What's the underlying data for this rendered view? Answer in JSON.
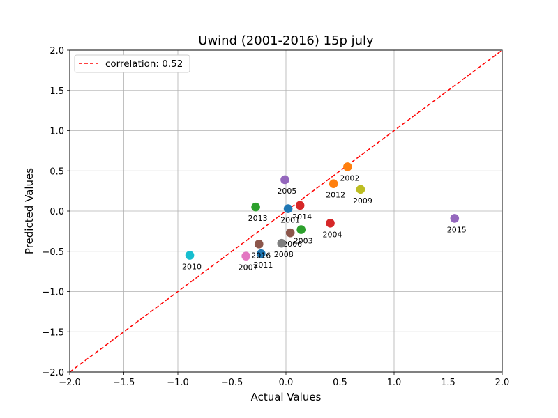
{
  "chart_data": {
    "type": "scatter",
    "title": "Uwind (2001-2016) 15p july",
    "xlabel": "Actual Values",
    "ylabel": "Predicted Values",
    "xlim": [
      -2.0,
      2.0
    ],
    "ylim": [
      -2.0,
      2.0
    ],
    "xticks": [
      "−2.0",
      "−1.5",
      "−1.0",
      "−0.5",
      "0.0",
      "0.5",
      "1.0",
      "1.5",
      "2.0"
    ],
    "yticks": [
      "−2.0",
      "−1.5",
      "−1.0",
      "−0.5",
      "0.0",
      "0.5",
      "1.0",
      "1.5",
      "2.0"
    ],
    "grid": true,
    "legend": {
      "placement": "top-left",
      "entries": [
        {
          "label": "correlation: 0.52",
          "style": "dashed",
          "color": "#ff0000"
        }
      ]
    },
    "reference_line": {
      "label": "correlation: 0.52",
      "from": [
        -2.0,
        -2.0
      ],
      "to": [
        2.0,
        2.0
      ],
      "color": "#ff0000",
      "style": "dashed"
    },
    "points": [
      {
        "label": "2001",
        "x": 0.02,
        "y": 0.03,
        "color": "#1f77b4"
      },
      {
        "label": "2002",
        "x": 0.57,
        "y": 0.55,
        "color": "#ff7f0e"
      },
      {
        "label": "2003",
        "x": 0.14,
        "y": -0.23,
        "color": "#2ca02c"
      },
      {
        "label": "2004",
        "x": 0.41,
        "y": -0.15,
        "color": "#d62728"
      },
      {
        "label": "2005",
        "x": -0.01,
        "y": 0.39,
        "color": "#9467bd"
      },
      {
        "label": "2006",
        "x": 0.04,
        "y": -0.27,
        "color": "#8c564b"
      },
      {
        "label": "2007",
        "x": -0.37,
        "y": -0.56,
        "color": "#e377c2"
      },
      {
        "label": "2008",
        "x": -0.04,
        "y": -0.4,
        "color": "#7f7f7f"
      },
      {
        "label": "2009",
        "x": 0.69,
        "y": 0.27,
        "color": "#bcbd22"
      },
      {
        "label": "2010",
        "x": -0.89,
        "y": -0.55,
        "color": "#17becf"
      },
      {
        "label": "2011",
        "x": -0.23,
        "y": -0.53,
        "color": "#1f77b4"
      },
      {
        "label": "2012",
        "x": 0.44,
        "y": 0.34,
        "color": "#ff7f0e"
      },
      {
        "label": "2013",
        "x": -0.28,
        "y": 0.05,
        "color": "#2ca02c"
      },
      {
        "label": "2014",
        "x": 0.13,
        "y": 0.07,
        "color": "#d62728"
      },
      {
        "label": "2015",
        "x": 1.56,
        "y": -0.09,
        "color": "#9467bd"
      },
      {
        "label": "2016",
        "x": -0.25,
        "y": -0.41,
        "color": "#8c564b"
      }
    ]
  }
}
